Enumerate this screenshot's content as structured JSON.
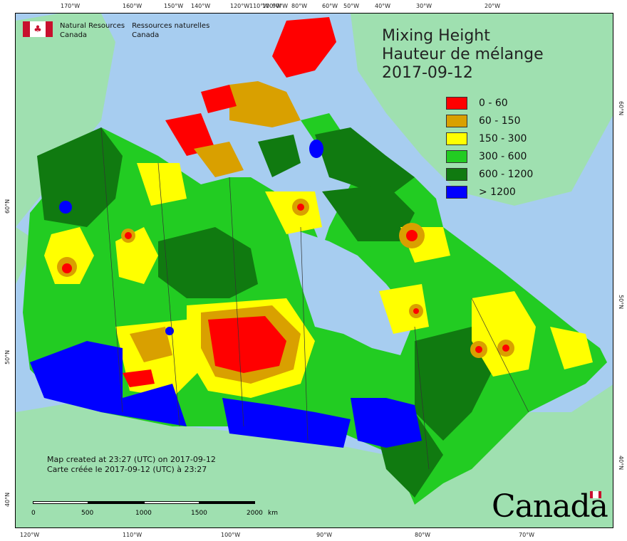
{
  "organization": {
    "en": "Natural Resources\nCanada",
    "en_line1": "Natural Resources",
    "en_line2": "Canada",
    "fr_line1": "Ressources naturelles",
    "fr_line2": "Canada"
  },
  "title": {
    "line1": "Mixing Height",
    "line2": "Hauteur de mélange",
    "date": "2017-09-12"
  },
  "legend": [
    {
      "label": "0 - 60",
      "color": "#ff0000"
    },
    {
      "label": "60 - 150",
      "color": "#d9a000"
    },
    {
      "label": "150 - 300",
      "color": "#ffff00"
    },
    {
      "label": "300 - 600",
      "color": "#22cc22"
    },
    {
      "label": "600 - 1200",
      "color": "#107a10"
    },
    {
      "label": "> 1200",
      "color": "#0000ff"
    }
  ],
  "credits": {
    "en": "Map created at 23:27 (UTC) on 2017-09-12",
    "fr": "Carte créée le 2017-09-12 (UTC) à 23:27"
  },
  "scale": {
    "ticks": [
      "0",
      "500",
      "1000",
      "1500",
      "2000"
    ],
    "unit": "km"
  },
  "wordmark": "Canada",
  "graticule": {
    "top": [
      "170°W",
      "160°W",
      "150°W",
      "140°W",
      "120°W",
      "110°W",
      "100°W",
      "90°W",
      "80°W",
      "60°W",
      "50°W",
      "40°W",
      "30°W",
      "20°W"
    ],
    "bottom": [
      "120°W",
      "110°W",
      "100°W",
      "90°W",
      "80°W",
      "70°W"
    ],
    "left": [
      "60°N",
      "50°N",
      "40°N"
    ],
    "right": [
      "60°N",
      "50°N",
      "40°N"
    ]
  },
  "colors": {
    "ocean": "#a7cdf0",
    "land_outside": "#9fe0b0",
    "class_0_60": "#ff0000",
    "class_60_150": "#d9a000",
    "class_150_300": "#ffff00",
    "class_300_600": "#22cc22",
    "class_600_1200": "#107a10",
    "class_1200_plus": "#0000ff"
  }
}
